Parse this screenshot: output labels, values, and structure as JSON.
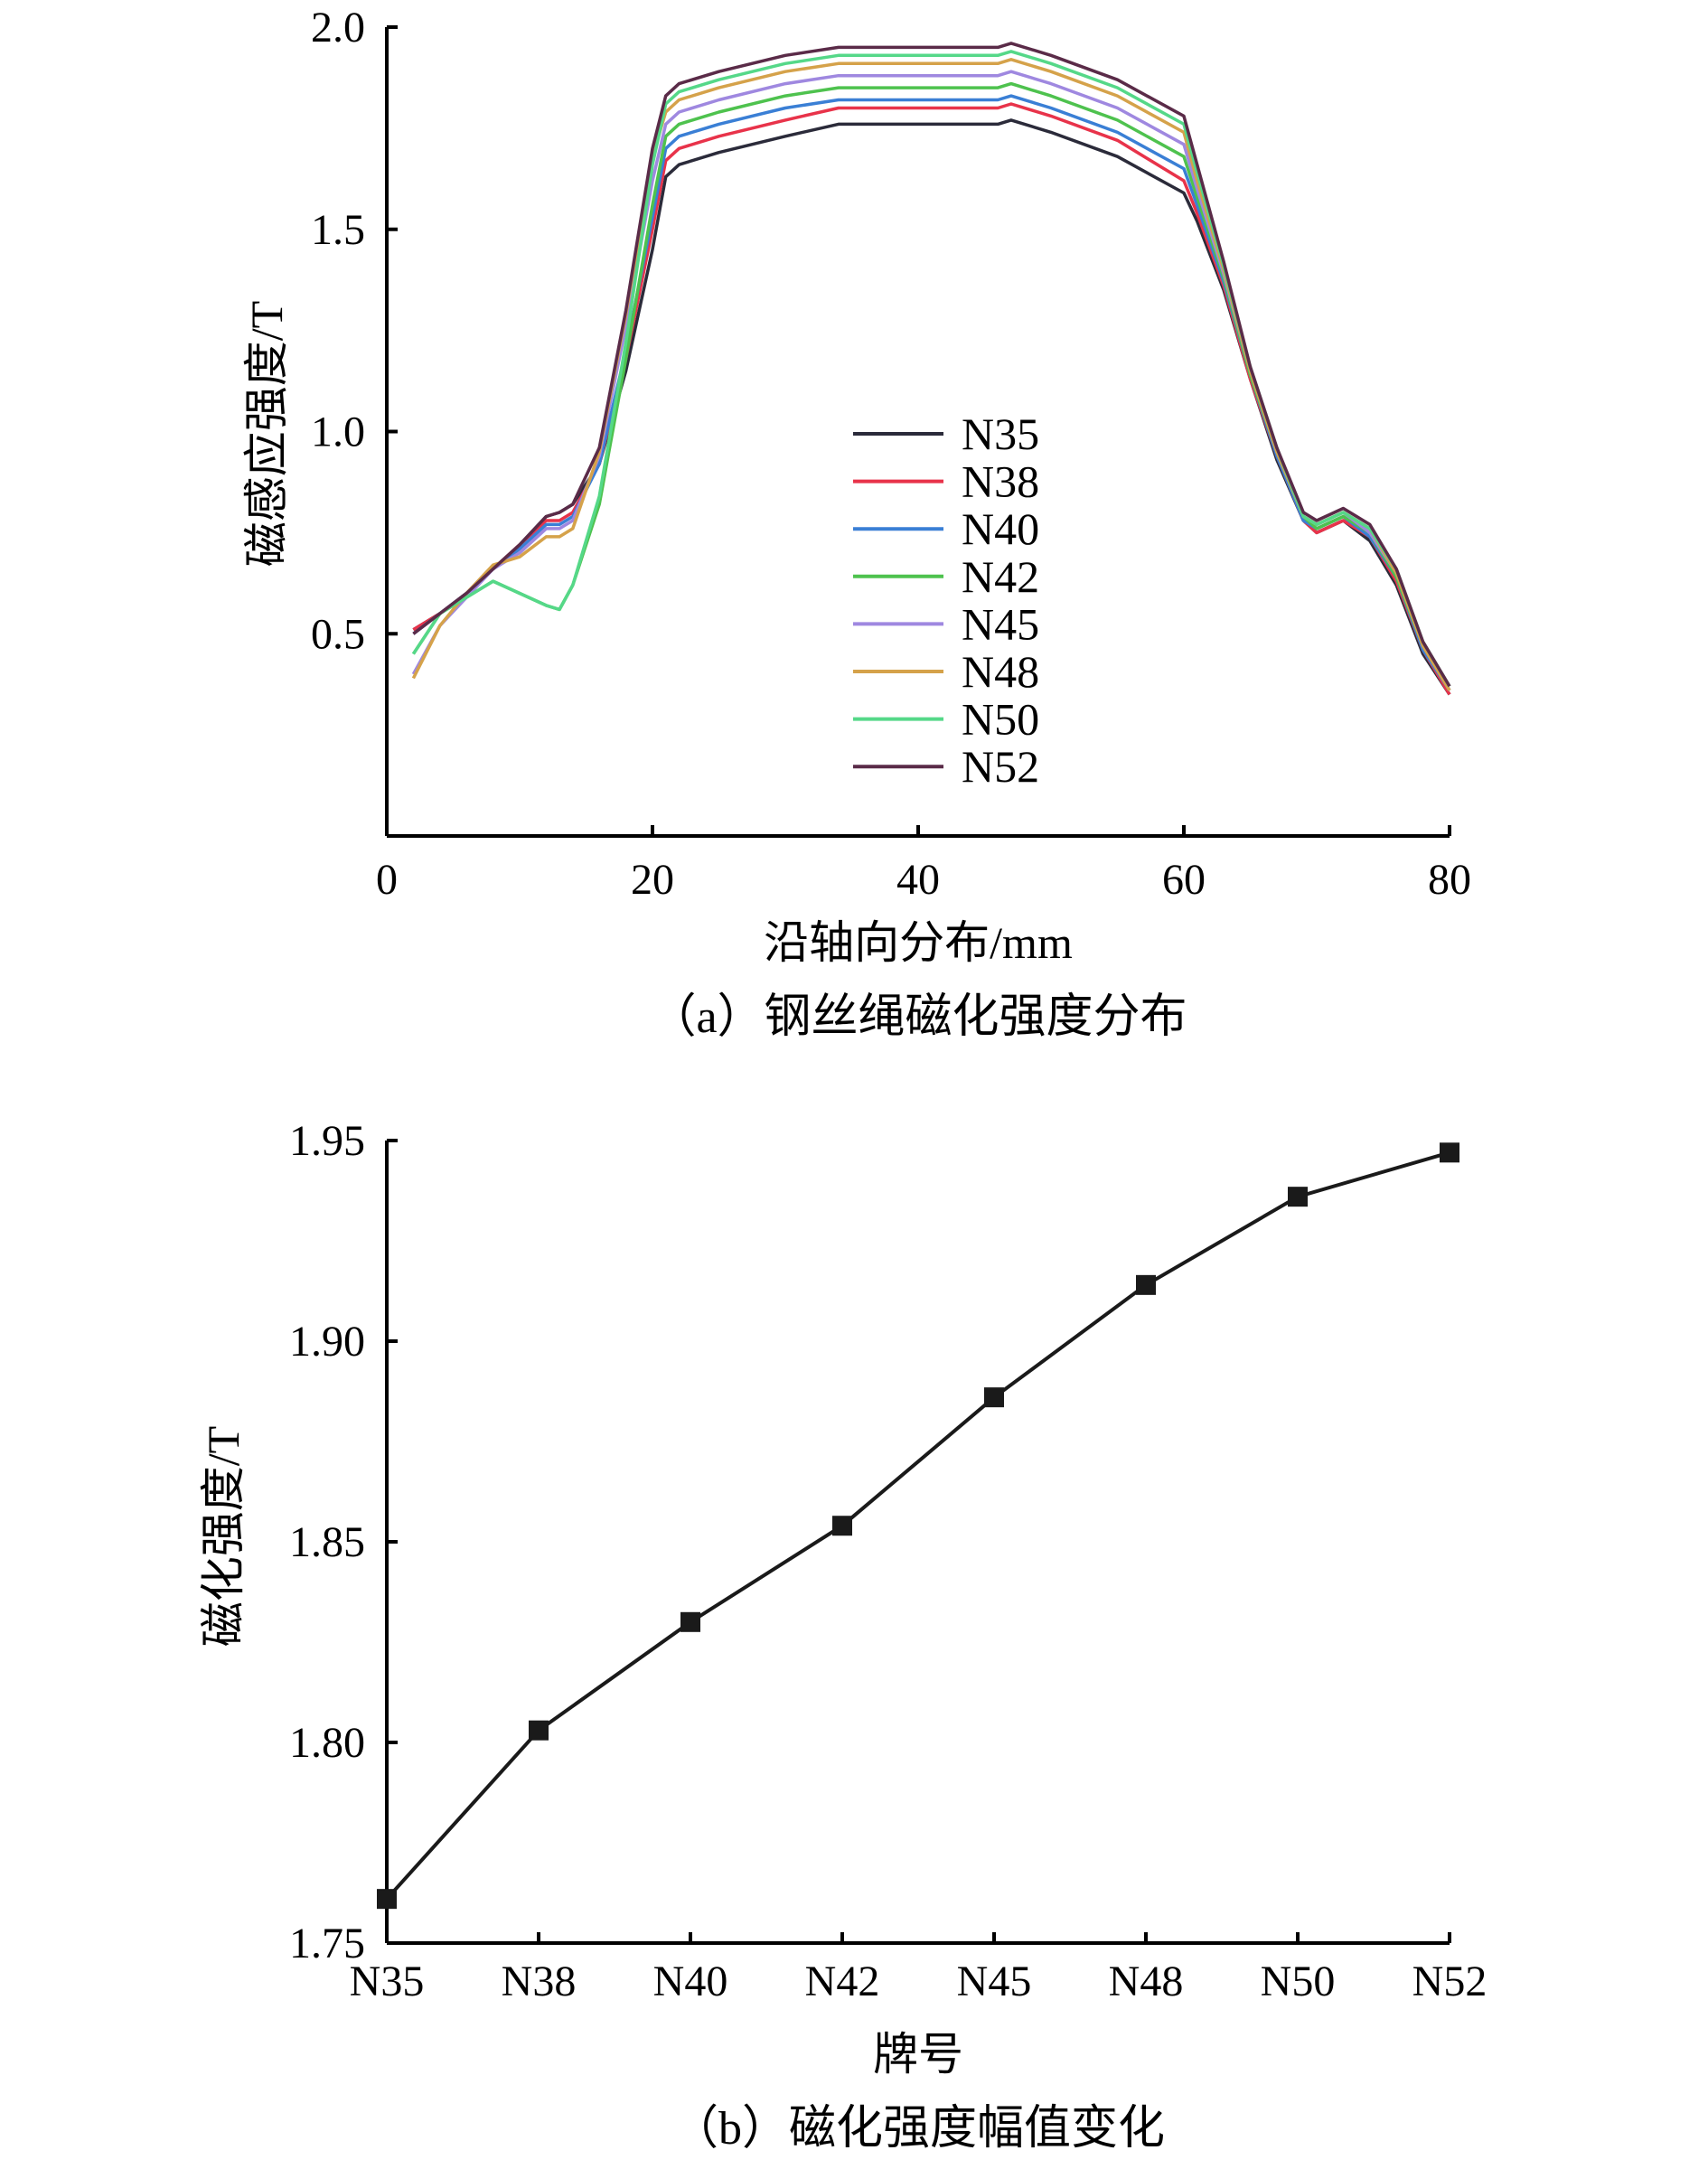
{
  "chart_data": [
    {
      "type": "line",
      "title": "",
      "caption": "（a）钢丝绳磁化强度分布",
      "xlabel": "沿轴向分布/mm",
      "ylabel": "磁感应强度/T",
      "xlim": [
        0,
        80
      ],
      "ylim": [
        0,
        2.0
      ],
      "xticks": [
        "0",
        "20",
        "40",
        "60",
        "80"
      ],
      "yticks": [
        "0.5",
        "1.0",
        "1.5",
        "2.0"
      ],
      "ytick_values": [
        0.5,
        1.0,
        1.5,
        2.0
      ],
      "legend_position": "center",
      "x": [
        2,
        4,
        6,
        8,
        10,
        12,
        13,
        14,
        16,
        18,
        20,
        21,
        22,
        25,
        30,
        34,
        40,
        46,
        47,
        50,
        55,
        60,
        61,
        63,
        65,
        67,
        69,
        70,
        72,
        74,
        76,
        78,
        80
      ],
      "series": [
        {
          "name": "N35",
          "color": "#2b2b3a",
          "values": [
            0.51,
            0.55,
            0.6,
            0.66,
            0.72,
            0.79,
            0.8,
            0.82,
            0.92,
            1.15,
            1.45,
            1.63,
            1.66,
            1.69,
            1.73,
            1.76,
            1.76,
            1.76,
            1.77,
            1.74,
            1.68,
            1.59,
            1.52,
            1.35,
            1.13,
            0.93,
            0.78,
            0.75,
            0.78,
            0.73,
            0.62,
            0.45,
            0.35
          ]
        },
        {
          "name": "N38",
          "color": "#e8334a",
          "values": [
            0.51,
            0.55,
            0.6,
            0.66,
            0.72,
            0.78,
            0.78,
            0.8,
            0.92,
            1.18,
            1.5,
            1.67,
            1.7,
            1.73,
            1.77,
            1.8,
            1.8,
            1.8,
            1.81,
            1.78,
            1.72,
            1.62,
            1.54,
            1.36,
            1.13,
            0.94,
            0.78,
            0.75,
            0.78,
            0.74,
            0.63,
            0.46,
            0.35
          ]
        },
        {
          "name": "N40",
          "color": "#3a7fd5",
          "values": [
            0.5,
            0.55,
            0.6,
            0.66,
            0.71,
            0.77,
            0.77,
            0.79,
            0.92,
            1.2,
            1.53,
            1.7,
            1.73,
            1.76,
            1.8,
            1.82,
            1.82,
            1.82,
            1.83,
            1.8,
            1.74,
            1.65,
            1.56,
            1.37,
            1.14,
            0.94,
            0.78,
            0.76,
            0.79,
            0.74,
            0.64,
            0.46,
            0.36
          ]
        },
        {
          "name": "N42",
          "color": "#4ec24e",
          "values": [
            0.45,
            0.55,
            0.59,
            0.63,
            0.6,
            0.57,
            0.56,
            0.62,
            0.82,
            1.18,
            1.56,
            1.73,
            1.76,
            1.79,
            1.83,
            1.85,
            1.85,
            1.85,
            1.86,
            1.83,
            1.77,
            1.68,
            1.58,
            1.38,
            1.14,
            0.95,
            0.79,
            0.76,
            0.79,
            0.75,
            0.64,
            0.47,
            0.36
          ]
        },
        {
          "name": "N45",
          "color": "#9f88e0",
          "values": [
            0.4,
            0.52,
            0.59,
            0.66,
            0.7,
            0.76,
            0.76,
            0.78,
            0.94,
            1.26,
            1.62,
            1.76,
            1.79,
            1.82,
            1.86,
            1.88,
            1.88,
            1.88,
            1.89,
            1.86,
            1.8,
            1.71,
            1.6,
            1.39,
            1.15,
            0.95,
            0.79,
            0.77,
            0.8,
            0.75,
            0.65,
            0.47,
            0.36
          ]
        },
        {
          "name": "N48",
          "color": "#d5a24a",
          "values": [
            0.39,
            0.52,
            0.6,
            0.67,
            0.69,
            0.74,
            0.74,
            0.76,
            0.95,
            1.29,
            1.68,
            1.79,
            1.82,
            1.85,
            1.89,
            1.91,
            1.91,
            1.91,
            1.92,
            1.89,
            1.83,
            1.74,
            1.62,
            1.4,
            1.15,
            0.95,
            0.79,
            0.77,
            0.8,
            0.76,
            0.65,
            0.47,
            0.36
          ]
        },
        {
          "name": "N50",
          "color": "#55d888",
          "values": [
            0.45,
            0.55,
            0.59,
            0.63,
            0.6,
            0.57,
            0.56,
            0.62,
            0.84,
            1.22,
            1.66,
            1.81,
            1.84,
            1.87,
            1.91,
            1.93,
            1.93,
            1.93,
            1.94,
            1.91,
            1.85,
            1.76,
            1.64,
            1.41,
            1.16,
            0.96,
            0.79,
            0.77,
            0.8,
            0.76,
            0.66,
            0.48,
            0.37
          ]
        },
        {
          "name": "N52",
          "color": "#5a2b48",
          "values": [
            0.5,
            0.55,
            0.6,
            0.66,
            0.72,
            0.79,
            0.8,
            0.82,
            0.96,
            1.3,
            1.7,
            1.83,
            1.86,
            1.89,
            1.93,
            1.95,
            1.95,
            1.95,
            1.96,
            1.93,
            1.87,
            1.78,
            1.66,
            1.42,
            1.16,
            0.96,
            0.8,
            0.78,
            0.81,
            0.77,
            0.66,
            0.48,
            0.37
          ]
        }
      ]
    },
    {
      "type": "line",
      "title": "",
      "caption": "（b）磁化强度幅值变化",
      "xlabel": "牌号",
      "ylabel": "磁化强度/T",
      "ylim": [
        1.75,
        1.95
      ],
      "yticks": [
        "1.75",
        "1.80",
        "1.85",
        "1.90",
        "1.95"
      ],
      "ytick_values": [
        1.75,
        1.8,
        1.85,
        1.9,
        1.95
      ],
      "categories": [
        "N35",
        "N38",
        "N40",
        "N42",
        "N45",
        "N48",
        "N50",
        "N52"
      ],
      "values": [
        1.761,
        1.803,
        1.83,
        1.854,
        1.886,
        1.914,
        1.936,
        1.947
      ],
      "marker": "square",
      "color": "#1a1a1a"
    }
  ]
}
